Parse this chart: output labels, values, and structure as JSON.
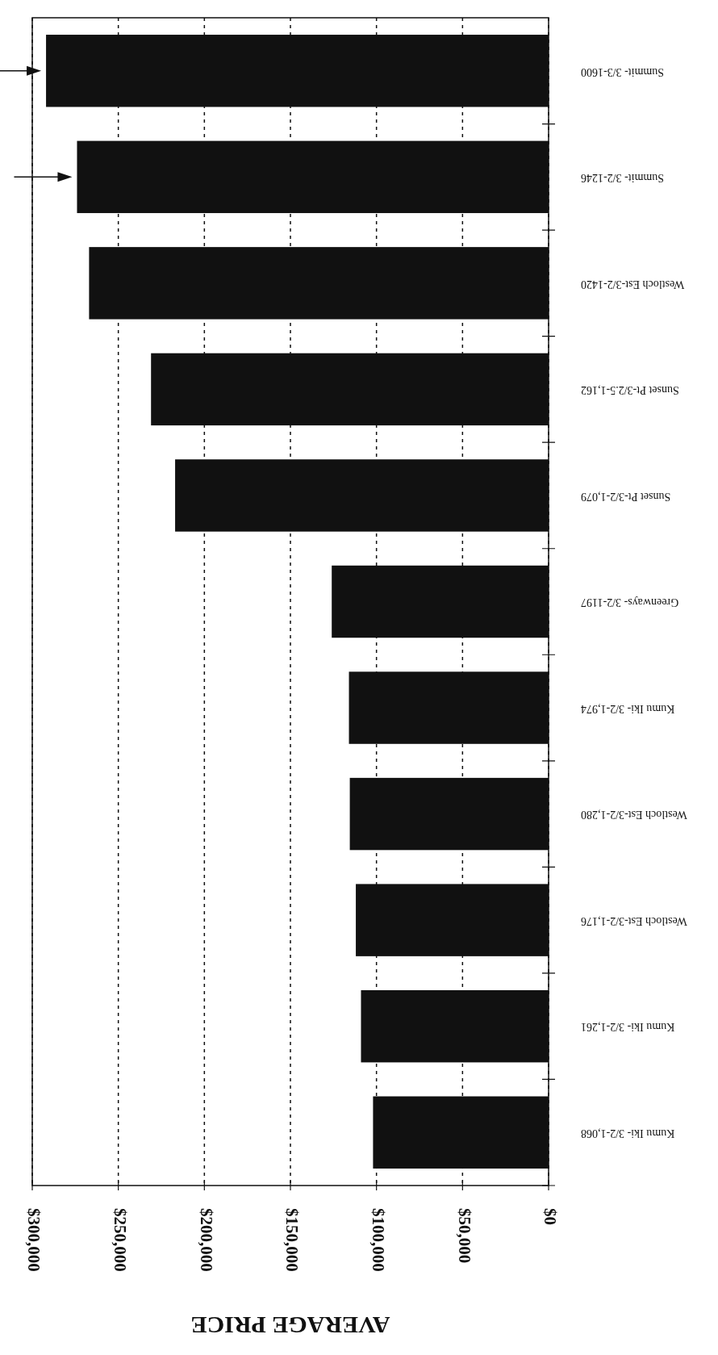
{
  "chart_data": {
    "type": "bar",
    "orientation": "horizontal",
    "xlabel": "AVERAGE PRICE",
    "categories": [
      "Summit- 3/3-1600",
      "Summit- 3/2-1246",
      "Westloch Est-3/2-1420",
      "Sunset Pt-3/2.5-1,162",
      "Sunset Pt-3/2-1,079",
      "Greenways- 3/2-1197",
      "Kumu Iki- 3/2-1,974",
      "Westloch Est-3/2-1,280",
      "Westloch Est-3/2-1,176",
      "Kumu Iki- 3/2-1,261",
      "Kumu Iki- 3/2-1,068"
    ],
    "values": [
      292000,
      274000,
      267000,
      231000,
      217000,
      126000,
      116000,
      115500,
      112000,
      109000,
      102000
    ],
    "color": "#111111",
    "xlim": [
      300000,
      0
    ],
    "xticks": [
      {
        "value": 300000,
        "label": "$300,000"
      },
      {
        "value": 250000,
        "label": "$250,000"
      },
      {
        "value": 200000,
        "label": "$200,000"
      },
      {
        "value": 150000,
        "label": "$150,000"
      },
      {
        "value": 100000,
        "label": "$100,000"
      },
      {
        "value": 50000,
        "label": "$50,000"
      },
      {
        "value": 0,
        "label": "$0"
      }
    ],
    "grid": "x"
  }
}
